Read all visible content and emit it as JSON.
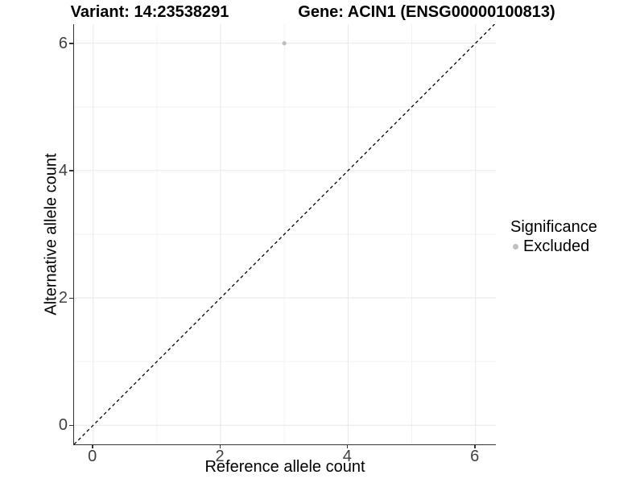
{
  "chart_data": {
    "type": "scatter",
    "title_left": "Variant: 14:23538291",
    "title_right": "Gene: ACIN1 (ENSG00000100813)",
    "xlabel": "Reference allele count",
    "ylabel": "Alternative allele count",
    "xlim": [
      -0.3,
      6.32
    ],
    "ylim": [
      -0.3,
      6.3
    ],
    "xticks": [
      0,
      2,
      4,
      6
    ],
    "yticks": [
      0,
      2,
      4,
      6
    ],
    "grid_major": [
      0,
      2,
      4,
      6
    ],
    "grid_minor": [
      1,
      3,
      5
    ],
    "grid": "on",
    "legend_position": "right",
    "reference_line": {
      "type": "identity y=x",
      "style": "dashed",
      "color": "#000000"
    },
    "points": [
      {
        "x": 3,
        "y": 6,
        "series": "Excluded"
      }
    ],
    "series": [
      {
        "name": "Excluded",
        "color": "#bfbfbf"
      }
    ],
    "legend": {
      "title": "Significance",
      "entries": [
        {
          "label": "Excluded",
          "color": "#bfbfbf",
          "marker": "circle"
        }
      ]
    }
  },
  "colors": {
    "background": "#ffffff",
    "grid_major": "#e8e8e8",
    "grid_minor": "#f2f2f2",
    "axis_line": "#333333",
    "tick_text": "#404040",
    "title_text": "#000000",
    "dashed_line": "#000000",
    "point": "#bfbfbf"
  }
}
